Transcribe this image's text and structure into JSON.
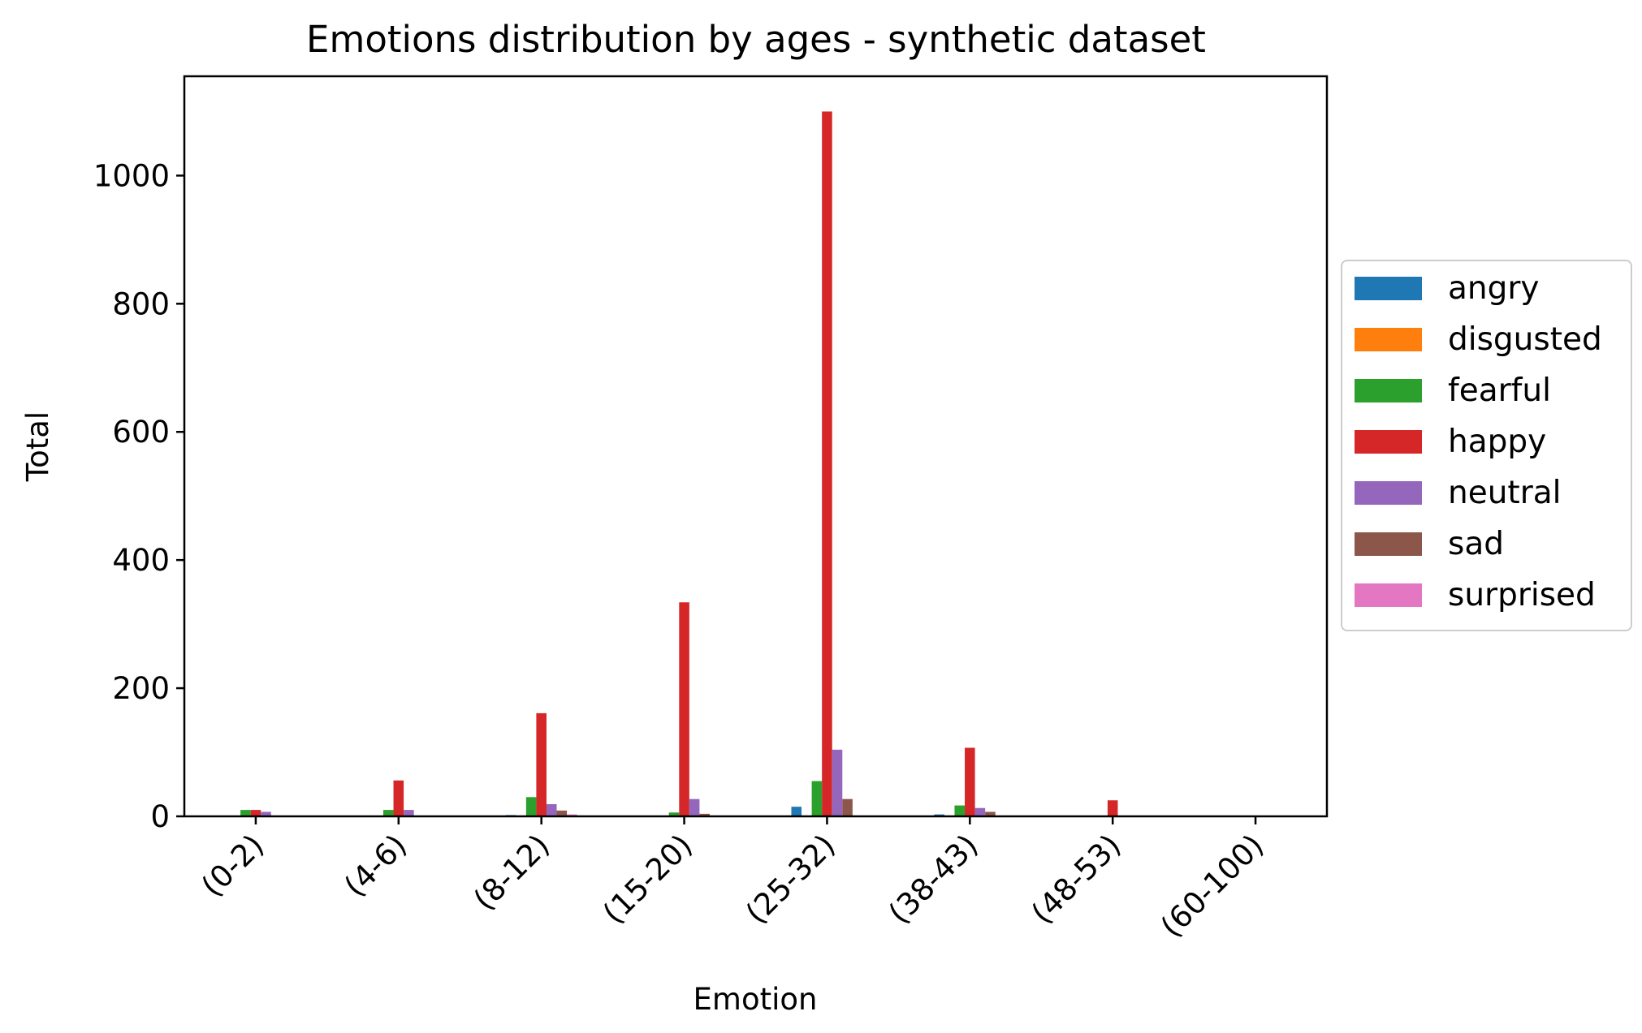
{
  "chart_data": {
    "type": "bar",
    "title": "Emotions distribution by ages - synthetic dataset",
    "xlabel": "Emotion",
    "ylabel": "Total",
    "ylim": [
      0,
      1155
    ],
    "yticks": [
      0,
      200,
      400,
      600,
      800,
      1000
    ],
    "categories": [
      "(0-2)",
      "(4-6)",
      "(8-12)",
      "(15-20)",
      "(25-32)",
      "(38-43)",
      "(48-53)",
      "(60-100)"
    ],
    "series": [
      {
        "name": "angry",
        "color": "#1f77b4",
        "values": [
          0,
          0,
          2,
          0,
          15,
          3,
          0,
          0
        ]
      },
      {
        "name": "disgusted",
        "color": "#ff7f0e",
        "values": [
          0,
          0,
          0,
          0,
          0,
          0,
          0,
          0
        ]
      },
      {
        "name": "fearful",
        "color": "#2ca02c",
        "values": [
          10,
          10,
          30,
          6,
          55,
          17,
          0,
          0
        ]
      },
      {
        "name": "happy",
        "color": "#d62728",
        "values": [
          10,
          56,
          161,
          334,
          1100,
          107,
          25,
          0
        ]
      },
      {
        "name": "neutral",
        "color": "#9467bd",
        "values": [
          7,
          10,
          19,
          27,
          104,
          13,
          0,
          0
        ]
      },
      {
        "name": "sad",
        "color": "#8c564b",
        "values": [
          0,
          0,
          9,
          4,
          27,
          7,
          0,
          0
        ]
      },
      {
        "name": "surprised",
        "color": "#e377c2",
        "values": [
          0,
          0,
          3,
          0,
          0,
          0,
          0,
          0
        ]
      }
    ],
    "legend": "center-right",
    "grid": false
  }
}
